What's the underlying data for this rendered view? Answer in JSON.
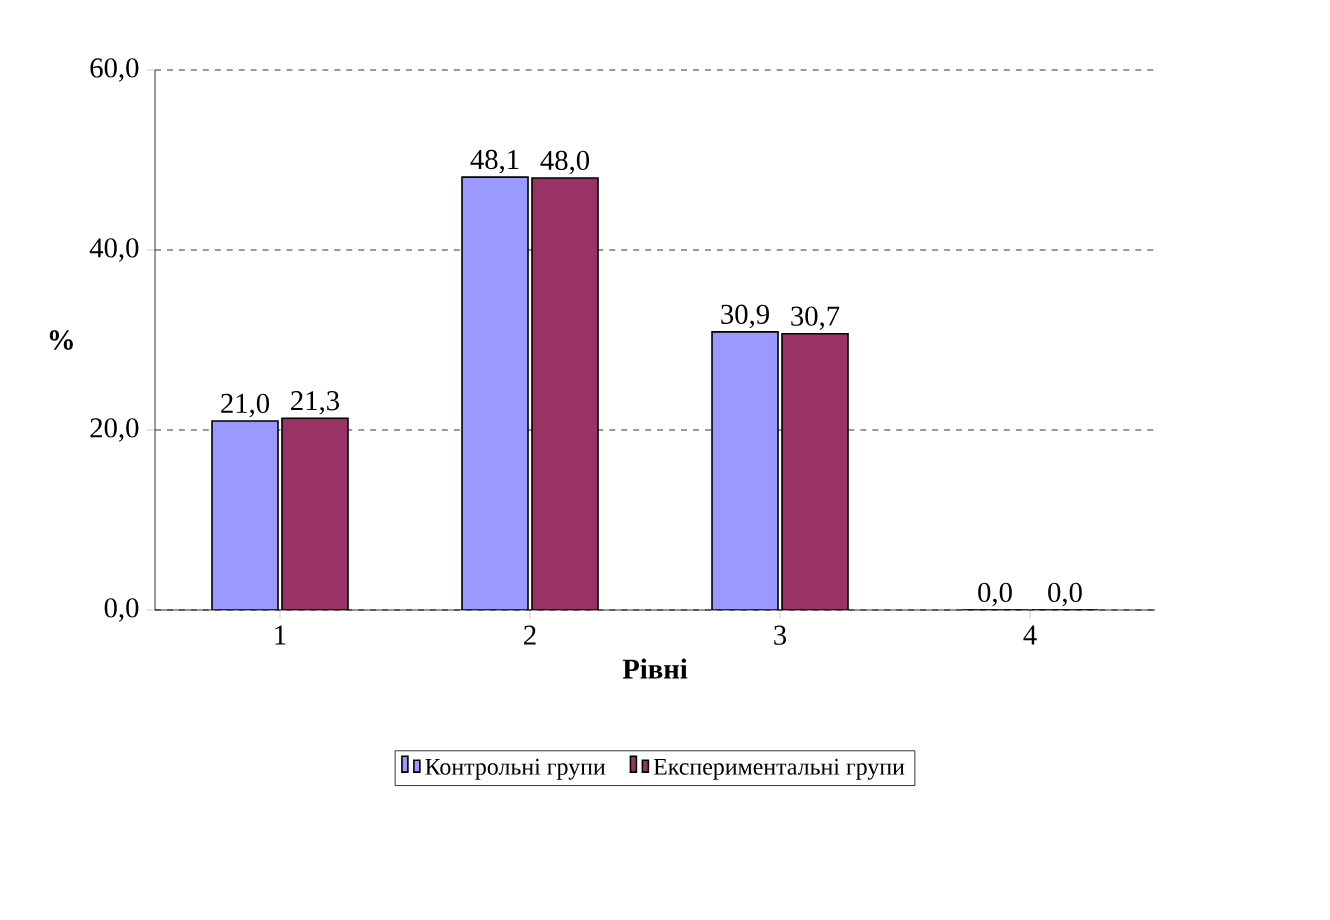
{
  "chart_data": {
    "type": "bar",
    "xlabel": "Рівні",
    "ylabel": "%",
    "categories": [
      "1",
      "2",
      "3",
      "4"
    ],
    "series": [
      {
        "name": "Контрольні групи",
        "color": "#9999ff",
        "values": [
          21.0,
          48.1,
          30.9,
          0.0
        ],
        "value_labels": [
          "21,0",
          "48,1",
          "30,9",
          "0,0"
        ]
      },
      {
        "name": "Експериментальні групи",
        "color": "#993366",
        "values": [
          21.3,
          48.0,
          30.7,
          0.0
        ],
        "value_labels": [
          "21,3",
          "48,0",
          "30,7",
          "0,0"
        ]
      }
    ],
    "ylim": [
      0,
      60
    ],
    "yticks": [
      {
        "value": 0,
        "label": "0,0"
      },
      {
        "value": 20,
        "label": "20,0"
      },
      {
        "value": 40,
        "label": "40,0"
      },
      {
        "value": 60,
        "label": "60,0"
      }
    ],
    "grid": "y",
    "legend": "bottom"
  }
}
